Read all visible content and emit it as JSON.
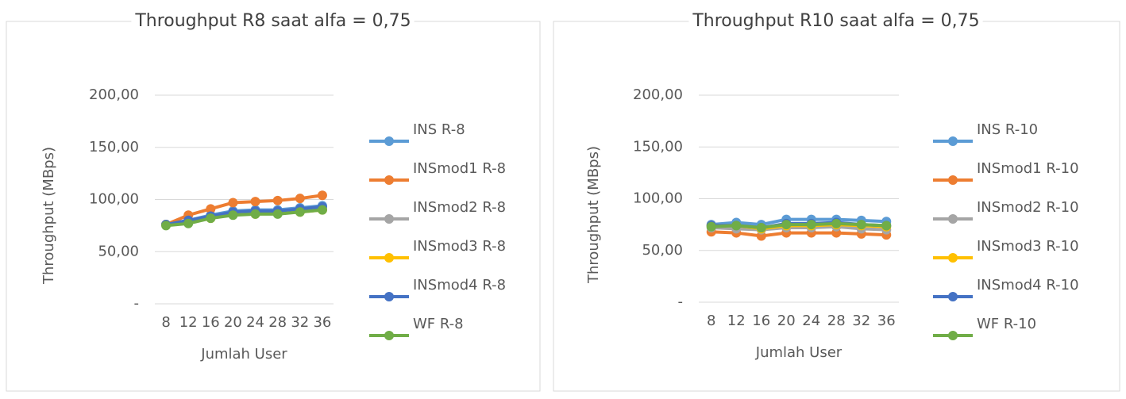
{
  "chart_data": [
    {
      "type": "line",
      "title": "Throughput R8 saat alfa = 0,75",
      "xlabel": "Jumlah User",
      "ylabel": "Throughput (MBps)",
      "categories": [
        "8",
        "12",
        "16",
        "20",
        "24",
        "28",
        "32",
        "36"
      ],
      "ylim": [
        0,
        200
      ],
      "yticks": [
        {
          "value": 0,
          "label": "-"
        },
        {
          "value": 50,
          "label": "50,00"
        },
        {
          "value": 100,
          "label": "100,00"
        },
        {
          "value": 150,
          "label": "150,00"
        },
        {
          "value": 200,
          "label": "200,00"
        }
      ],
      "grid": true,
      "legend": "right",
      "series": [
        {
          "name": "INS R-8",
          "color": "#5b9bd5",
          "values": [
            76,
            80,
            85,
            89,
            90,
            90,
            92,
            94
          ]
        },
        {
          "name": "INSmod1 R-8",
          "color": "#ed7d31",
          "values": [
            76,
            85,
            91,
            97,
            98,
            99,
            101,
            104
          ]
        },
        {
          "name": "INSmod2 R-8",
          "color": "#a5a5a5",
          "values": [
            76,
            79,
            83,
            87,
            87,
            88,
            89,
            91
          ]
        },
        {
          "name": "INSmod3 R-8",
          "color": "#ffc000",
          "values": [
            76,
            78,
            82,
            86,
            86,
            87,
            88,
            90
          ]
        },
        {
          "name": "INSmod4 R-8",
          "color": "#4472c4",
          "values": [
            76,
            80,
            84,
            88,
            89,
            89,
            91,
            93
          ]
        },
        {
          "name": "WF R-8",
          "color": "#70ad47",
          "values": [
            75,
            77,
            82,
            85,
            86,
            86,
            88,
            90
          ]
        }
      ]
    },
    {
      "type": "line",
      "title": "Throughput R10 saat alfa = 0,75",
      "xlabel": "Jumlah User",
      "ylabel": "Throughput (MBps)",
      "categories": [
        "8",
        "12",
        "16",
        "20",
        "24",
        "28",
        "32",
        "36"
      ],
      "ylim": [
        0,
        200
      ],
      "yticks": [
        {
          "value": 0,
          "label": "-"
        },
        {
          "value": 50,
          "label": "50,00"
        },
        {
          "value": 100,
          "label": "100,00"
        },
        {
          "value": 150,
          "label": "150,00"
        },
        {
          "value": 200,
          "label": "200,00"
        }
      ],
      "grid": true,
      "legend": "right",
      "series": [
        {
          "name": "INS R-10",
          "color": "#5b9bd5",
          "values": [
            75,
            77,
            75,
            80,
            80,
            80,
            79,
            78
          ]
        },
        {
          "name": "INSmod1 R-10",
          "color": "#ed7d31",
          "values": [
            68,
            67,
            64,
            67,
            67,
            67,
            66,
            65
          ]
        },
        {
          "name": "INSmod2 R-10",
          "color": "#a5a5a5",
          "values": [
            72,
            71,
            70,
            72,
            72,
            73,
            71,
            70
          ]
        },
        {
          "name": "INSmod3 R-10",
          "color": "#ffc000",
          "values": [
            74,
            74,
            71,
            74,
            74,
            75,
            74,
            73
          ]
        },
        {
          "name": "INSmod4 R-10",
          "color": "#4472c4",
          "values": [
            74,
            74,
            72,
            76,
            76,
            77,
            75,
            74
          ]
        },
        {
          "name": "WF R-10",
          "color": "#70ad47",
          "values": [
            73,
            74,
            72,
            75,
            75,
            76,
            75,
            74
          ]
        }
      ]
    }
  ]
}
